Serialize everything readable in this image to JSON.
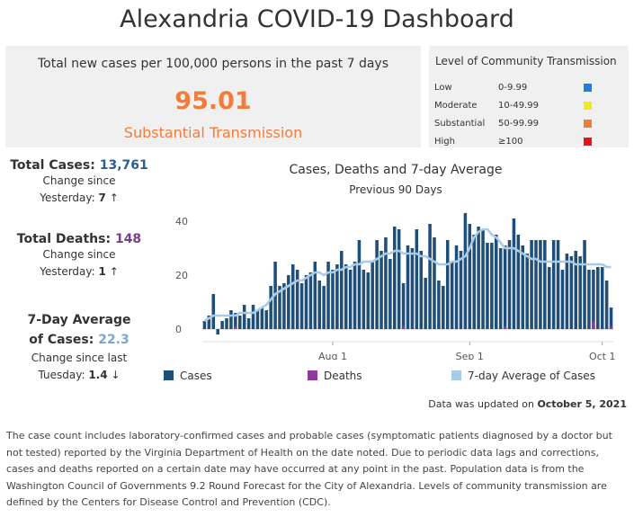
{
  "header": {
    "title": "Alexandria COVID-19 Dashboard"
  },
  "rate_panel": {
    "caption": "Total new cases per 100,000 persons in the past 7 days",
    "value": "95.01",
    "level": "Substantial Transmission",
    "accent_color": "#f07d3c"
  },
  "transmission_legend": {
    "title": "Level of Community Transmission",
    "levels": [
      {
        "label": "Low",
        "range": "0-9.99",
        "color": "#1e7fe0"
      },
      {
        "label": "Moderate",
        "range": "10-49.99",
        "color": "#f4e81a"
      },
      {
        "label": "Substantial",
        "range": "50-99.99",
        "color": "#f07d3c"
      },
      {
        "label": "High",
        "range": "≥100",
        "color": "#e8141a"
      }
    ]
  },
  "stats": {
    "total_cases": {
      "label": "Total Cases: ",
      "value": "13,761",
      "change_label": "Change since",
      "change_period": "Yesterday: ",
      "change_value": "7",
      "arrow": "↑",
      "color": "#2b5e8c"
    },
    "total_deaths": {
      "label": "Total Deaths: ",
      "value": "148",
      "change_label": "Change since",
      "change_period": "Yesterday: ",
      "change_value": "1",
      "arrow": "↑",
      "color": "#7b3e8c"
    },
    "avg_cases": {
      "label_line1": "7-Day Average",
      "label_line2": "of Cases: ",
      "value": "22.3",
      "change_label": "Change since last",
      "change_period": "Tuesday: ",
      "change_value": "1.4",
      "arrow": "↓",
      "color": "#7aa8c8"
    }
  },
  "chart": {
    "title": "Cases, Deaths and 7-day Average",
    "subtitle": "Previous 90 Days"
  },
  "legend": {
    "cases": {
      "label": "Cases",
      "color": "#1f4e79"
    },
    "deaths": {
      "label": "Deaths",
      "color": "#8e3a9d"
    },
    "avg": {
      "label": "7-day Average of Cases",
      "color": "#a8cbe8"
    }
  },
  "updated": {
    "prefix": "Data was updated on ",
    "date": "October 5, 2021"
  },
  "footnote": "The case count includes laboratory-confirmed cases and probable cases (symptomatic patients diagnosed by a doctor but not tested) reported by the Virginia Department of Health on the date noted. Due to periodic data lags and corrections, cases and deaths reported on a certain date may have occurred at any point in the past. Population data is from the Washington Council of Governments 9.2 Round Forecast for the City of Alexandria. Levels of community transmission are defined by the Centers for Disease Control and Prevention (CDC).",
  "chart_data": {
    "type": "bar",
    "title": "Cases, Deaths and 7-day Average",
    "subtitle": "Previous 90 Days",
    "y_ticks": [
      0,
      20,
      40
    ],
    "ylim": [
      -4,
      45
    ],
    "x_tick_labels": [
      {
        "label": "Aug 1",
        "index": 29
      },
      {
        "label": "Sep 1",
        "index": 60
      },
      {
        "label": "Oct 1",
        "index": 90
      }
    ],
    "cases": [
      3,
      5,
      13,
      -2,
      3,
      4,
      7,
      6,
      5,
      9,
      4,
      9,
      7,
      8,
      7,
      16,
      25,
      16,
      17,
      20,
      24,
      22,
      17,
      20,
      21,
      25,
      18,
      16,
      25,
      22,
      24,
      29,
      24,
      22,
      25,
      33,
      22,
      21,
      25,
      33,
      29,
      34,
      26,
      38,
      37,
      17,
      31,
      30,
      37,
      29,
      19,
      39,
      34,
      18,
      16,
      33,
      25,
      31,
      29,
      43,
      39,
      35,
      38,
      37,
      32,
      32,
      35,
      30,
      31,
      33,
      41,
      35,
      31,
      28,
      33,
      33,
      33,
      33,
      23,
      33,
      33,
      22,
      28,
      27,
      29,
      27,
      33,
      22,
      22,
      23,
      23,
      18,
      8
    ],
    "deaths": [
      0,
      0,
      0,
      0,
      0,
      0,
      0,
      1,
      0,
      0,
      0,
      0,
      0,
      0,
      0,
      0,
      0,
      0,
      0,
      0,
      0,
      0,
      0,
      0,
      0,
      0,
      0,
      0,
      0,
      0,
      0,
      0,
      0,
      0,
      0,
      0,
      0,
      0,
      0,
      0,
      0,
      0,
      0,
      0,
      0,
      1,
      0,
      0,
      0,
      0,
      0,
      0,
      0,
      0,
      0,
      0,
      0,
      0,
      0,
      0,
      0,
      0,
      0,
      0,
      0,
      0,
      0,
      0,
      1,
      0,
      0,
      0,
      0,
      0,
      0,
      0,
      0,
      0,
      0,
      0,
      0,
      0,
      0,
      0,
      0,
      0,
      0,
      0,
      3,
      0,
      0,
      0,
      1
    ],
    "avg_7day": [
      3,
      4,
      5,
      5,
      5,
      5,
      5,
      5,
      6,
      6,
      6,
      6,
      7,
      8,
      9,
      11,
      13,
      14,
      15,
      16,
      17,
      18,
      18,
      19,
      20,
      21,
      21,
      20,
      21,
      21,
      22,
      22,
      23,
      23,
      24,
      24,
      25,
      25,
      25,
      26,
      27,
      28,
      28,
      29,
      29,
      28,
      28,
      28,
      28,
      27,
      27,
      26,
      25,
      24,
      24,
      24,
      25,
      25,
      26,
      27,
      30,
      34,
      36,
      37,
      37,
      35,
      34,
      32,
      30,
      30,
      30,
      29,
      28,
      27,
      26,
      26,
      25,
      25,
      25,
      25,
      25,
      25,
      25,
      25,
      24,
      24,
      24,
      24,
      24,
      24,
      24,
      23,
      23
    ]
  }
}
